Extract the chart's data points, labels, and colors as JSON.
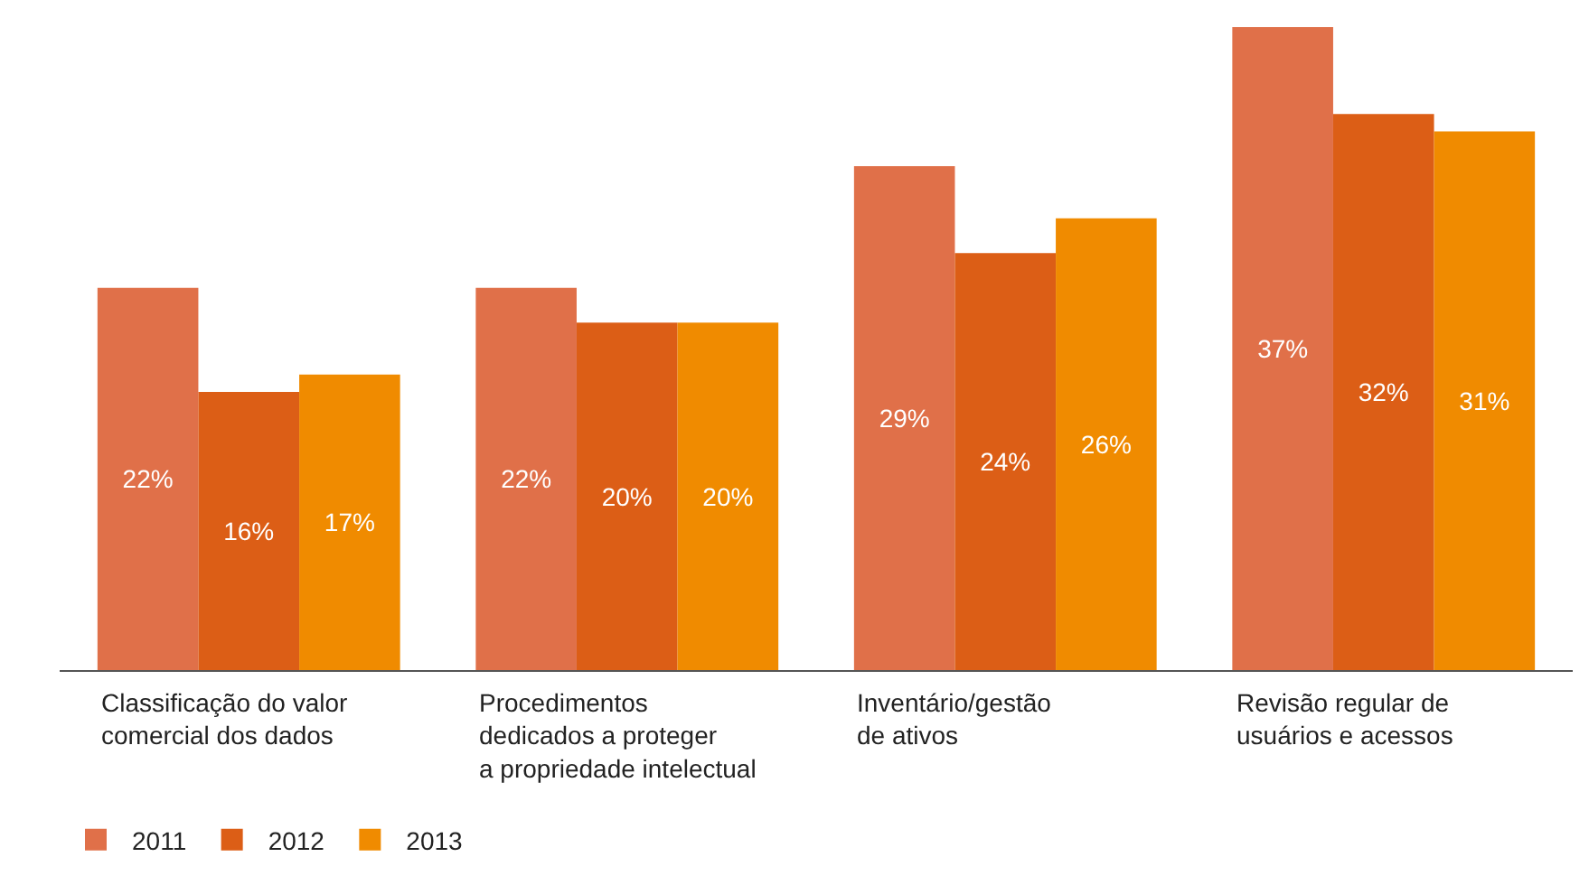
{
  "chart_data": {
    "type": "bar",
    "categories": [
      "Classificação do valor\ncomercial dos dados",
      "Procedimentos\ndedicados a proteger\na propriedade intelectual",
      "Inventário/gestão\nde ativos",
      "Revisão regular de\nusuários e acessos"
    ],
    "series": [
      {
        "name": "2011",
        "color": "#e07049",
        "values": [
          22,
          22,
          29,
          37
        ],
        "value_labels": [
          "22%",
          "22%",
          "29%",
          "37%"
        ]
      },
      {
        "name": "2012",
        "color": "#dc5e16",
        "values": [
          16,
          20,
          24,
          32
        ],
        "value_labels": [
          "16%",
          "20%",
          "24%",
          "32%"
        ]
      },
      {
        "name": "2013",
        "color": "#f08b00",
        "values": [
          17,
          20,
          26,
          31
        ],
        "value_labels": [
          "17%",
          "20%",
          "26%",
          "31%"
        ]
      }
    ],
    "legend": "bottom left"
  }
}
